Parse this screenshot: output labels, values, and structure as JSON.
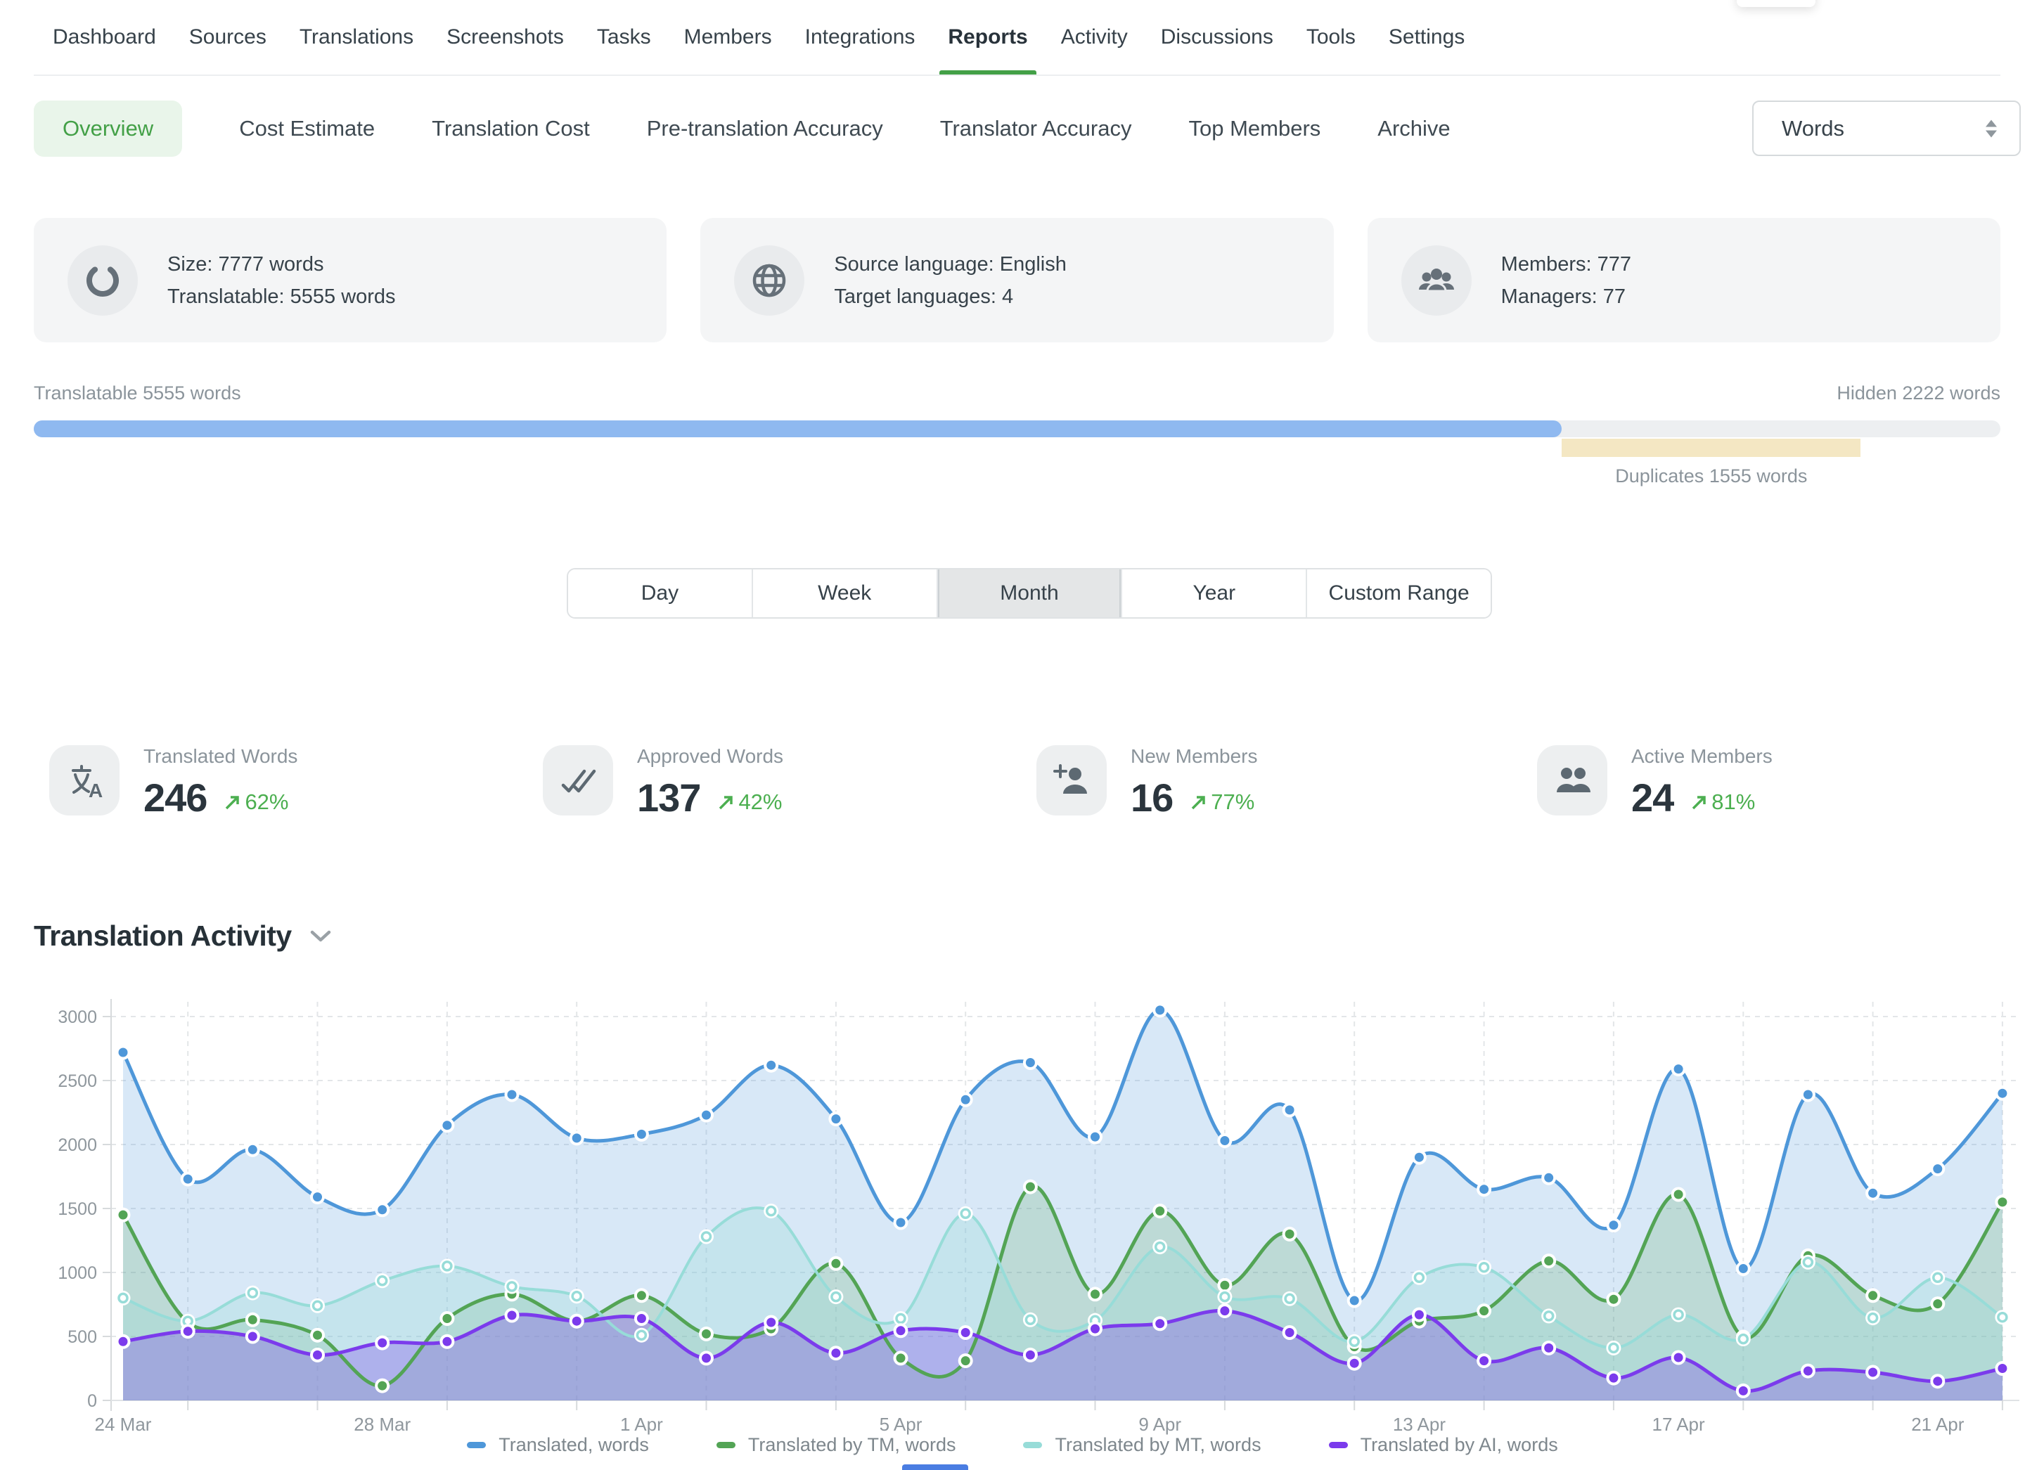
{
  "nav": {
    "items": [
      {
        "label": "Dashboard",
        "active": false
      },
      {
        "label": "Sources",
        "active": false
      },
      {
        "label": "Translations",
        "active": false
      },
      {
        "label": "Screenshots",
        "active": false
      },
      {
        "label": "Tasks",
        "active": false
      },
      {
        "label": "Members",
        "active": false
      },
      {
        "label": "Integrations",
        "active": false
      },
      {
        "label": "Reports",
        "active": true
      },
      {
        "label": "Activity",
        "active": false
      },
      {
        "label": "Discussions",
        "active": false
      },
      {
        "label": "Tools",
        "active": false
      },
      {
        "label": "Settings",
        "active": false
      }
    ],
    "active_color": "#43a047"
  },
  "subnav": {
    "items": [
      {
        "label": "Overview",
        "active": true
      },
      {
        "label": "Cost Estimate",
        "active": false
      },
      {
        "label": "Translation Cost",
        "active": false
      },
      {
        "label": "Pre-translation Accuracy",
        "active": false
      },
      {
        "label": "Translator Accuracy",
        "active": false
      },
      {
        "label": "Top Members",
        "active": false
      },
      {
        "label": "Archive",
        "active": false
      }
    ],
    "unit_select": {
      "value": "Words"
    }
  },
  "summary_cards": [
    {
      "icon": "progress-ring-icon",
      "line1": "Size: 7777 words",
      "line2": "Translatable: 5555 words"
    },
    {
      "icon": "globe-icon",
      "line1": "Source language: English",
      "line2": "Target languages: 4"
    },
    {
      "icon": "members-group-icon",
      "line1": "Members: 777",
      "line2": "Managers: 77"
    }
  ],
  "progress": {
    "left_label": "Translatable 5555 words",
    "right_label": "Hidden 2222 words",
    "duplicates_label": "Duplicates 1555 words",
    "translatable_color": "#8fb9f0",
    "track_color": "#edeff1",
    "duplicates_color": "#f4e7c3",
    "translatable_pct": 77.7,
    "duplicates_start_pct": 77.7,
    "duplicates_width_pct": 15.2
  },
  "range_tabs": {
    "options": [
      "Day",
      "Week",
      "Month",
      "Year",
      "Custom Range"
    ],
    "selected": "Month"
  },
  "stats": [
    {
      "icon": "translate-icon",
      "label": "Translated Words",
      "value": "246",
      "trend": "62%"
    },
    {
      "icon": "double-check-icon",
      "label": "Approved Words",
      "value": "137",
      "trend": "42%"
    },
    {
      "icon": "person-add-icon",
      "label": "New Members",
      "value": "16",
      "trend": "77%"
    },
    {
      "icon": "people-icon",
      "label": "Active Members",
      "value": "24",
      "trend": "81%"
    }
  ],
  "trend_color": "#4caf50",
  "activity_section": {
    "title": "Translation Activity"
  },
  "chart_data": {
    "type": "area",
    "title": "Translation Activity",
    "x": [
      "24 Mar",
      "25 Mar",
      "26 Mar",
      "27 Mar",
      "28 Mar",
      "29 Mar",
      "30 Mar",
      "31 Mar",
      "1 Apr",
      "2 Apr",
      "3 Apr",
      "4 Apr",
      "5 Apr",
      "6 Apr",
      "7 Apr",
      "8 Apr",
      "9 Apr",
      "10 Apr",
      "11 Apr",
      "12 Apr",
      "13 Apr",
      "14 Apr",
      "15 Apr",
      "16 Apr",
      "17 Apr",
      "18 Apr",
      "19 Apr",
      "20 Apr",
      "21 Apr",
      "22 Apr"
    ],
    "xtick_labels": [
      "24 Mar",
      "28 Mar",
      "1 Apr",
      "5 Apr",
      "9 Apr",
      "13 Apr",
      "17 Apr",
      "21 Apr"
    ],
    "ylim": [
      0,
      3000
    ],
    "ytick_step": 500,
    "grid": "dashed",
    "legend_position": "bottom",
    "series": [
      {
        "name": "Translated, words",
        "color": "#4e97d9",
        "fill": "rgba(78,151,217,0.22)",
        "marker": "solid",
        "values": [
          2720,
          1730,
          1960,
          1590,
          1490,
          2150,
          2390,
          2050,
          2080,
          2230,
          2620,
          2200,
          1390,
          2350,
          2640,
          2060,
          3050,
          2030,
          2270,
          780,
          1900,
          1650,
          1740,
          1370,
          2590,
          1030,
          2390,
          1620,
          1810,
          2400
        ]
      },
      {
        "name": "Translated by TM, words",
        "color": "#53a455",
        "fill": "rgba(83,164,85,0.20)",
        "marker": "solid",
        "values": [
          1450,
          610,
          630,
          510,
          115,
          640,
          830,
          620,
          820,
          520,
          560,
          1070,
          330,
          310,
          1670,
          830,
          1480,
          900,
          1300,
          420,
          620,
          700,
          1090,
          790,
          1610,
          495,
          1130,
          820,
          755,
          1550
        ]
      },
      {
        "name": "Translated by MT, words",
        "color": "#97dcd8",
        "fill": "rgba(151,220,216,0.30)",
        "marker": "hollow",
        "values": [
          800,
          620,
          840,
          740,
          935,
          1050,
          890,
          815,
          510,
          1280,
          1480,
          810,
          640,
          1460,
          630,
          625,
          1200,
          810,
          795,
          460,
          960,
          1040,
          660,
          410,
          670,
          480,
          1080,
          645,
          960,
          650
        ]
      },
      {
        "name": "Translated by AI, words",
        "color": "#7b3bec",
        "fill": "rgba(123,59,236,0.30)",
        "marker": "solid",
        "values": [
          460,
          540,
          500,
          355,
          450,
          460,
          665,
          620,
          640,
          330,
          610,
          370,
          545,
          530,
          355,
          560,
          600,
          700,
          530,
          290,
          670,
          310,
          410,
          175,
          335,
          75,
          230,
          220,
          150,
          250
        ]
      }
    ]
  }
}
